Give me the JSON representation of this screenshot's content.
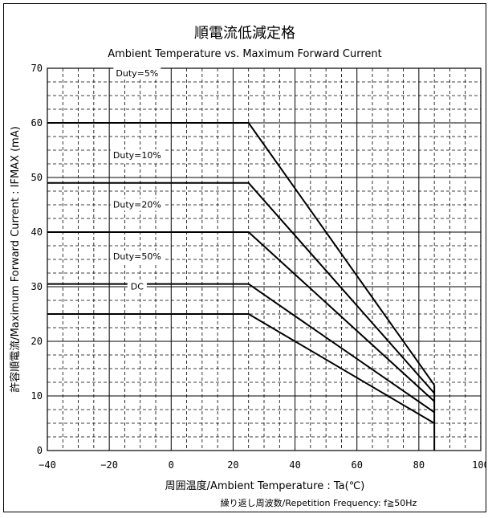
{
  "chart_data": {
    "type": "line",
    "title": "順電流低減定格",
    "subtitle": "Ambient Temperature vs. Maximum Forward Current",
    "xlabel": "周囲温度/Ambient Temperature : Ta(℃)",
    "ylabel": "許容順電流/Maximum Forward Current : IFMAX (mA)",
    "note": "繰り返し周波数/Repetition Frequency: f≧50Hz",
    "xlim": [
      -40,
      100
    ],
    "ylim": [
      0,
      70
    ],
    "xticks": [
      "−40",
      "−20",
      "0",
      "20",
      "40",
      "60",
      "80",
      "100"
    ],
    "yticks": [
      "0",
      "10",
      "20",
      "30",
      "40",
      "50",
      "60",
      "70"
    ],
    "grid": true,
    "series": [
      {
        "name": "Duty=5%",
        "x": [
          -40,
          25,
          85
        ],
        "y": [
          60,
          60,
          12
        ]
      },
      {
        "name": "Duty=10%",
        "x": [
          -40,
          25,
          85
        ],
        "y": [
          49,
          49,
          10.5
        ]
      },
      {
        "name": "Duty=20%",
        "x": [
          -40,
          25,
          85
        ],
        "y": [
          40,
          40,
          9
        ]
      },
      {
        "name": "Duty=50%",
        "x": [
          -40,
          25,
          85
        ],
        "y": [
          30.5,
          30.5,
          7
        ]
      },
      {
        "name": "DC",
        "x": [
          -40,
          25,
          85
        ],
        "y": [
          25,
          25,
          5
        ]
      }
    ]
  }
}
